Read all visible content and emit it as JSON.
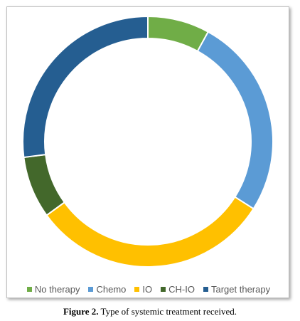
{
  "chart_data": {
    "type": "pie",
    "donut": true,
    "categories": [
      "No therapy",
      "Chemo",
      "IO",
      "CH-IO",
      "Target therapy"
    ],
    "values": [
      8,
      26,
      31,
      8,
      27
    ],
    "colors": [
      "#70ad47",
      "#5b9bd5",
      "#ffc000",
      "#43682b",
      "#255e91"
    ],
    "legend_position": "bottom",
    "unit": "%"
  },
  "caption": {
    "label": "Figure 2.",
    "text": " Type of systemic treatment received."
  }
}
